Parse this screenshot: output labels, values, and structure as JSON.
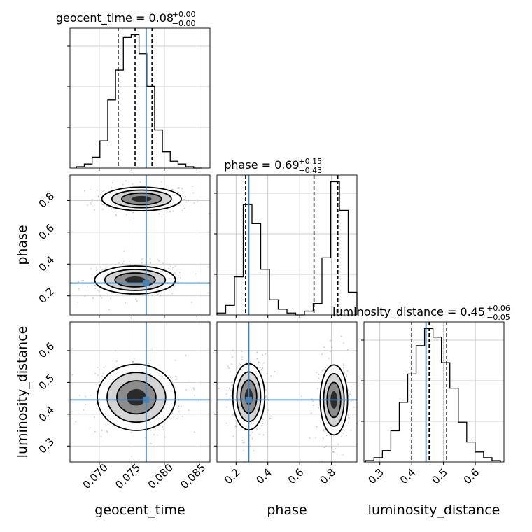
{
  "chart_data": {
    "type": "corner",
    "parameters": [
      "geocent_time",
      "phase",
      "luminosity_distance"
    ],
    "colors": {
      "truth": "#4682b4",
      "hist": "#000000",
      "quantile": "#000000",
      "grid": "#bfbfbf"
    },
    "titles": [
      {
        "param": "geocent_time",
        "text": "geocent_time = 0.08",
        "sup": "+0.00",
        "sub": "−0.00"
      },
      {
        "param": "phase",
        "text": "phase = 0.69",
        "sup": "+0.15",
        "sub": "−0.43"
      },
      {
        "param": "luminosity_distance",
        "text": "luminosity_distance = 0.45",
        "sup": "+0.06",
        "sub": "−0.05"
      }
    ],
    "axes": {
      "geocent_time": {
        "range": [
          0.0655,
          0.087
        ],
        "ticks": [
          0.07,
          0.075,
          0.08,
          0.085
        ],
        "tick_labels": [
          "0.070",
          "0.075",
          "0.080",
          "0.085"
        ],
        "label": "geocent_time"
      },
      "phase": {
        "range": [
          0.08,
          0.96
        ],
        "ticks": [
          0.2,
          0.4,
          0.6,
          0.8
        ],
        "tick_labels": [
          "0.2",
          "0.4",
          "0.6",
          "0.8"
        ],
        "label": "phase"
      },
      "luminosity_distance": {
        "range": [
          0.25,
          0.69
        ],
        "ticks": [
          0.3,
          0.4,
          0.5,
          0.6
        ],
        "tick_labels": [
          "0.3",
          "0.4",
          "0.5",
          "0.6"
        ],
        "label": "luminosity_distance"
      }
    },
    "truths": {
      "geocent_time": 0.0772,
      "phase": 0.28,
      "luminosity_distance": 0.445
    },
    "quantiles": {
      "geocent_time": [
        0.0729,
        0.0755,
        0.0781
      ],
      "phase": [
        0.26,
        0.69,
        0.84
      ],
      "luminosity_distance": [
        0.4,
        0.455,
        0.51
      ]
    },
    "histograms": {
      "geocent_time": {
        "edges": [
          0.0665,
          0.0677,
          0.0689,
          0.0701,
          0.0713,
          0.0725,
          0.0737,
          0.0749,
          0.0761,
          0.0773,
          0.0785,
          0.0797,
          0.0809,
          0.0821,
          0.0833,
          0.0845,
          0.0857
        ],
        "counts": [
          1,
          3,
          8,
          20,
          50,
          72,
          96,
          98,
          84,
          60,
          28,
          12,
          5,
          3,
          1,
          0
        ]
      },
      "phase": {
        "edges": [
          0.08,
          0.135,
          0.19,
          0.245,
          0.3,
          0.355,
          0.41,
          0.465,
          0.52,
          0.575,
          0.63,
          0.685,
          0.74,
          0.795,
          0.85,
          0.905,
          0.96
        ],
        "counts": [
          1,
          5,
          20,
          58,
          48,
          24,
          8,
          3,
          1,
          0,
          2,
          6,
          30,
          70,
          55,
          12
        ]
      },
      "luminosity_distance": {
        "edges": [
          0.255,
          0.2815,
          0.308,
          0.3345,
          0.361,
          0.3875,
          0.414,
          0.4405,
          0.467,
          0.4935,
          0.52,
          0.5465,
          0.573,
          0.5995,
          0.626,
          0.6525,
          0.679
        ],
        "counts": [
          1,
          3,
          8,
          22,
          42,
          62,
          82,
          94,
          88,
          70,
          52,
          28,
          14,
          7,
          3,
          1
        ]
      }
    },
    "blobs": [
      {
        "x": "geocent_time",
        "y": "phase",
        "cx": 0.0765,
        "cy": 0.81,
        "sx": 0.00305,
        "sy": 0.037
      },
      {
        "x": "geocent_time",
        "y": "phase",
        "cx": 0.0755,
        "cy": 0.3,
        "sx": 0.0031,
        "sy": 0.044
      },
      {
        "x": "geocent_time",
        "y": "luminosity_distance",
        "cx": 0.0757,
        "cy": 0.453,
        "sx": 0.003,
        "sy": 0.052
      },
      {
        "x": "phase",
        "y": "luminosity_distance",
        "cx": 0.28,
        "cy": 0.455,
        "sx": 0.05,
        "sy": 0.052
      },
      {
        "x": "phase",
        "y": "luminosity_distance",
        "cx": 0.815,
        "cy": 0.445,
        "sx": 0.043,
        "sy": 0.055
      }
    ],
    "contour_levels_sigma": [
      0.5,
      1.0,
      1.5,
      2.0
    ],
    "grid": true,
    "legend": "none"
  }
}
